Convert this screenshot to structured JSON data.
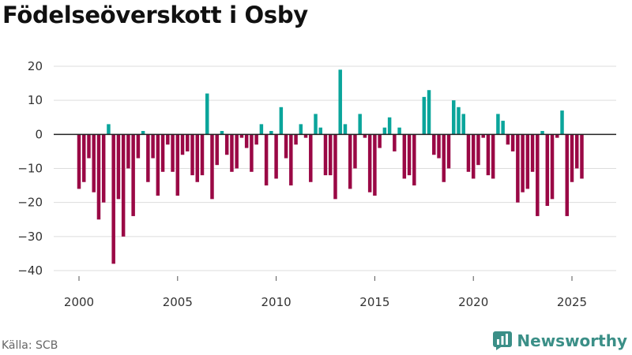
{
  "title": "Födelseöverskott i Osby",
  "source": "Källa: SCB",
  "brand": "Newsworthy",
  "colors": {
    "positive": "#0aa59b",
    "negative": "#9a0845",
    "zero_line": "#222222",
    "grid": "#dddddd",
    "brand": "#3b8f87"
  },
  "chart_data": {
    "type": "bar",
    "title": "Födelseöverskott i Osby",
    "xlabel": "",
    "ylabel": "",
    "ylim": [
      -40,
      20
    ],
    "yticks": [
      20,
      10,
      0,
      -10,
      -20,
      -30,
      -40
    ],
    "xticks": [
      "2000",
      "2005",
      "2010",
      "2015",
      "2020",
      "2025"
    ],
    "grid": true,
    "frequency": "quarterly",
    "start": "2000 Q1",
    "values": [
      -16,
      -14,
      -7,
      -17,
      -25,
      -20,
      3,
      -38,
      -19,
      -30,
      -10,
      -24,
      -7,
      1,
      -14,
      -7,
      -18,
      -11,
      -3,
      -11,
      -18,
      -6,
      -5,
      -12,
      -14,
      -12,
      12,
      -19,
      -9,
      1,
      -6,
      -11,
      -10,
      -1,
      -4,
      -11,
      -3,
      3,
      -15,
      1,
      -13,
      8,
      -7,
      -15,
      -3,
      3,
      -1,
      -14,
      6,
      2,
      -12,
      -12,
      -19,
      19,
      3,
      -16,
      -10,
      6,
      -1,
      -17,
      -18,
      -4,
      2,
      5,
      -5,
      2,
      -13,
      -12,
      -15,
      0,
      11,
      13,
      -6,
      -7,
      -14,
      -10,
      10,
      8,
      6,
      -11,
      -13,
      -9,
      -1,
      -12,
      -13,
      6,
      4,
      -3,
      -5,
      -20,
      -17,
      -16,
      -11,
      -24,
      1,
      -21,
      -19,
      -1,
      7,
      -24,
      -14,
      -10,
      -13
    ]
  }
}
